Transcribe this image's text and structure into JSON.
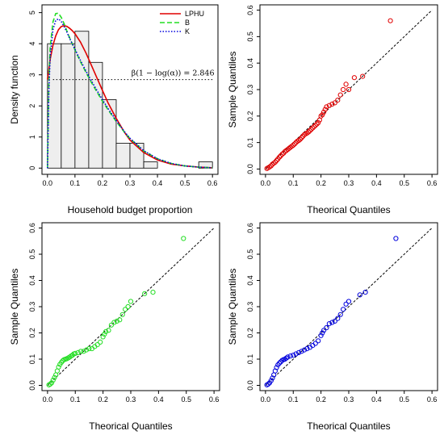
{
  "chart_data": [
    {
      "type": "bar",
      "panel": "histogram-density",
      "xlabel": "Household budget proportion",
      "ylabel": "Density function",
      "xlim": [
        -0.02,
        0.62
      ],
      "ylim": [
        -0.2,
        5.25
      ],
      "xticks": [
        "0.0",
        "0.1",
        "0.2",
        "0.3",
        "0.4",
        "0.5",
        "0.6"
      ],
      "yticks": [
        "0",
        "1",
        "2",
        "3",
        "4",
        "5"
      ],
      "bins": [
        {
          "x0": 0.0,
          "x1": 0.05,
          "value": 4.0
        },
        {
          "x0": 0.05,
          "x1": 0.1,
          "value": 4.0
        },
        {
          "x0": 0.1,
          "x1": 0.15,
          "value": 4.4
        },
        {
          "x0": 0.15,
          "x1": 0.2,
          "value": 3.4
        },
        {
          "x0": 0.2,
          "x1": 0.25,
          "value": 2.2
        },
        {
          "x0": 0.25,
          "x1": 0.3,
          "value": 0.8
        },
        {
          "x0": 0.3,
          "x1": 0.35,
          "value": 0.8
        },
        {
          "x0": 0.35,
          "x1": 0.4,
          "value": 0.2
        },
        {
          "x0": 0.4,
          "x1": 0.45,
          "value": 0.0
        },
        {
          "x0": 0.45,
          "x1": 0.5,
          "value": 0.0
        },
        {
          "x0": 0.5,
          "x1": 0.55,
          "value": 0.0
        },
        {
          "x0": 0.55,
          "x1": 0.6,
          "value": 0.2
        }
      ],
      "curves": [
        {
          "name": "LPHU",
          "color": "#e00000",
          "dash": "solid",
          "x": [
            0.0,
            0.01,
            0.02,
            0.03,
            0.04,
            0.05,
            0.06,
            0.07,
            0.08,
            0.09,
            0.1,
            0.12,
            0.14,
            0.16,
            0.18,
            0.2,
            0.22,
            0.25,
            0.28,
            0.3,
            0.35,
            0.4,
            0.45,
            0.5,
            0.55,
            0.6
          ],
          "y": [
            2.85,
            3.5,
            3.95,
            4.25,
            4.45,
            4.55,
            4.58,
            4.56,
            4.5,
            4.42,
            4.32,
            4.05,
            3.7,
            3.3,
            2.9,
            2.5,
            2.1,
            1.6,
            1.15,
            0.9,
            0.5,
            0.26,
            0.13,
            0.07,
            0.03,
            0.01
          ]
        },
        {
          "name": "B",
          "color": "#22dd22",
          "dash": "dashed",
          "x": [
            0.0,
            0.005,
            0.01,
            0.02,
            0.03,
            0.04,
            0.05,
            0.06,
            0.07,
            0.08,
            0.1,
            0.12,
            0.14,
            0.16,
            0.18,
            0.2,
            0.22,
            0.25,
            0.28,
            0.3,
            0.35,
            0.4,
            0.45,
            0.5,
            0.55,
            0.6
          ],
          "y": [
            0.0,
            2.8,
            3.9,
            4.7,
            4.97,
            4.98,
            4.85,
            4.65,
            4.42,
            4.2,
            3.8,
            3.42,
            3.08,
            2.75,
            2.45,
            2.15,
            1.88,
            1.5,
            1.15,
            0.95,
            0.55,
            0.3,
            0.15,
            0.07,
            0.03,
            0.01
          ]
        },
        {
          "name": "K",
          "color": "#0000dd",
          "dash": "dotted",
          "x": [
            0.0,
            0.005,
            0.01,
            0.02,
            0.03,
            0.04,
            0.05,
            0.06,
            0.07,
            0.08,
            0.1,
            0.12,
            0.14,
            0.16,
            0.18,
            0.2,
            0.22,
            0.25,
            0.28,
            0.3,
            0.35,
            0.4,
            0.45,
            0.5,
            0.55,
            0.6
          ],
          "y": [
            0.0,
            2.5,
            3.6,
            4.45,
            4.75,
            4.8,
            4.72,
            4.56,
            4.38,
            4.18,
            3.82,
            3.46,
            3.12,
            2.8,
            2.5,
            2.2,
            1.92,
            1.53,
            1.17,
            0.96,
            0.56,
            0.3,
            0.15,
            0.07,
            0.03,
            0.01
          ]
        }
      ],
      "reference_line": {
        "y": 2.846,
        "x_from": 0.02,
        "x_to": 0.6,
        "label": "β(1 − log(α)) = 2.846"
      },
      "legend": "top-right"
    },
    {
      "type": "scatter",
      "panel": "qq-red",
      "xlabel": "Theorical Quantiles",
      "ylabel": "Sample Quantiles",
      "xlim": [
        -0.02,
        0.62
      ],
      "ylim": [
        -0.02,
        0.62
      ],
      "xticks": [
        "0.0",
        "0.1",
        "0.2",
        "0.3",
        "0.4",
        "0.5",
        "0.6"
      ],
      "yticks": [
        "0.0",
        "0.1",
        "0.2",
        "0.3",
        "0.4",
        "0.5",
        "0.6"
      ],
      "color": "#e00000",
      "points": [
        [
          0.005,
          0.002
        ],
        [
          0.01,
          0.005
        ],
        [
          0.015,
          0.008
        ],
        [
          0.02,
          0.012
        ],
        [
          0.025,
          0.018
        ],
        [
          0.03,
          0.022
        ],
        [
          0.035,
          0.026
        ],
        [
          0.04,
          0.032
        ],
        [
          0.045,
          0.038
        ],
        [
          0.05,
          0.045
        ],
        [
          0.055,
          0.05
        ],
        [
          0.06,
          0.056
        ],
        [
          0.065,
          0.06
        ],
        [
          0.07,
          0.066
        ],
        [
          0.075,
          0.07
        ],
        [
          0.08,
          0.074
        ],
        [
          0.085,
          0.078
        ],
        [
          0.09,
          0.082
        ],
        [
          0.095,
          0.086
        ],
        [
          0.1,
          0.09
        ],
        [
          0.105,
          0.095
        ],
        [
          0.11,
          0.1
        ],
        [
          0.115,
          0.105
        ],
        [
          0.12,
          0.108
        ],
        [
          0.125,
          0.112
        ],
        [
          0.13,
          0.118
        ],
        [
          0.135,
          0.124
        ],
        [
          0.14,
          0.13
        ],
        [
          0.145,
          0.133
        ],
        [
          0.15,
          0.136
        ],
        [
          0.155,
          0.14
        ],
        [
          0.16,
          0.145
        ],
        [
          0.165,
          0.15
        ],
        [
          0.17,
          0.155
        ],
        [
          0.175,
          0.16
        ],
        [
          0.18,
          0.165
        ],
        [
          0.185,
          0.17
        ],
        [
          0.19,
          0.175
        ],
        [
          0.195,
          0.185
        ],
        [
          0.2,
          0.2
        ],
        [
          0.205,
          0.205
        ],
        [
          0.21,
          0.215
        ],
        [
          0.215,
          0.225
        ],
        [
          0.22,
          0.235
        ],
        [
          0.23,
          0.24
        ],
        [
          0.24,
          0.245
        ],
        [
          0.25,
          0.25
        ],
        [
          0.26,
          0.26
        ],
        [
          0.27,
          0.28
        ],
        [
          0.28,
          0.3
        ],
        [
          0.29,
          0.32
        ],
        [
          0.3,
          0.3
        ],
        [
          0.32,
          0.345
        ],
        [
          0.35,
          0.35
        ],
        [
          0.45,
          0.56
        ]
      ]
    },
    {
      "type": "scatter",
      "panel": "qq-green",
      "xlabel": "Theorical Quantiles",
      "ylabel": "Sample Quantiles",
      "xlim": [
        -0.02,
        0.62
      ],
      "ylim": [
        -0.02,
        0.62
      ],
      "xticks": [
        "0.0",
        "0.1",
        "0.2",
        "0.3",
        "0.4",
        "0.5",
        "0.6"
      ],
      "yticks": [
        "0.0",
        "0.1",
        "0.2",
        "0.3",
        "0.4",
        "0.5",
        "0.6"
      ],
      "color": "#22dd22",
      "points": [
        [
          0.005,
          0.002
        ],
        [
          0.01,
          0.005
        ],
        [
          0.015,
          0.01
        ],
        [
          0.02,
          0.02
        ],
        [
          0.025,
          0.03
        ],
        [
          0.03,
          0.04
        ],
        [
          0.035,
          0.055
        ],
        [
          0.04,
          0.07
        ],
        [
          0.045,
          0.08
        ],
        [
          0.05,
          0.088
        ],
        [
          0.055,
          0.094
        ],
        [
          0.06,
          0.098
        ],
        [
          0.065,
          0.1
        ],
        [
          0.07,
          0.102
        ],
        [
          0.075,
          0.105
        ],
        [
          0.08,
          0.108
        ],
        [
          0.085,
          0.112
        ],
        [
          0.09,
          0.115
        ],
        [
          0.095,
          0.12
        ],
        [
          0.1,
          0.122
        ],
        [
          0.11,
          0.125
        ],
        [
          0.12,
          0.13
        ],
        [
          0.13,
          0.13
        ],
        [
          0.14,
          0.135
        ],
        [
          0.15,
          0.14
        ],
        [
          0.16,
          0.14
        ],
        [
          0.17,
          0.148
        ],
        [
          0.18,
          0.155
        ],
        [
          0.19,
          0.165
        ],
        [
          0.2,
          0.185
        ],
        [
          0.205,
          0.195
        ],
        [
          0.21,
          0.205
        ],
        [
          0.22,
          0.21
        ],
        [
          0.23,
          0.23
        ],
        [
          0.24,
          0.24
        ],
        [
          0.25,
          0.245
        ],
        [
          0.26,
          0.25
        ],
        [
          0.27,
          0.27
        ],
        [
          0.28,
          0.29
        ],
        [
          0.29,
          0.3
        ],
        [
          0.3,
          0.32
        ],
        [
          0.35,
          0.35
        ],
        [
          0.38,
          0.355
        ],
        [
          0.49,
          0.56
        ]
      ]
    },
    {
      "type": "scatter",
      "panel": "qq-blue",
      "xlabel": "Theorical Quantiles",
      "ylabel": "Sample Quantiles",
      "xlim": [
        -0.02,
        0.62
      ],
      "ylim": [
        -0.02,
        0.62
      ],
      "xticks": [
        "0.0",
        "0.1",
        "0.2",
        "0.3",
        "0.4",
        "0.5",
        "0.6"
      ],
      "yticks": [
        "0.0",
        "0.1",
        "0.2",
        "0.3",
        "0.4",
        "0.5",
        "0.6"
      ],
      "color": "#0000dd",
      "points": [
        [
          0.005,
          0.002
        ],
        [
          0.01,
          0.005
        ],
        [
          0.015,
          0.01
        ],
        [
          0.02,
          0.018
        ],
        [
          0.025,
          0.028
        ],
        [
          0.03,
          0.04
        ],
        [
          0.035,
          0.055
        ],
        [
          0.04,
          0.068
        ],
        [
          0.045,
          0.078
        ],
        [
          0.05,
          0.085
        ],
        [
          0.055,
          0.09
        ],
        [
          0.06,
          0.095
        ],
        [
          0.065,
          0.098
        ],
        [
          0.07,
          0.1
        ],
        [
          0.075,
          0.104
        ],
        [
          0.08,
          0.108
        ],
        [
          0.09,
          0.112
        ],
        [
          0.1,
          0.115
        ],
        [
          0.11,
          0.12
        ],
        [
          0.12,
          0.125
        ],
        [
          0.13,
          0.13
        ],
        [
          0.14,
          0.135
        ],
        [
          0.15,
          0.14
        ],
        [
          0.16,
          0.145
        ],
        [
          0.17,
          0.152
        ],
        [
          0.18,
          0.16
        ],
        [
          0.19,
          0.17
        ],
        [
          0.2,
          0.19
        ],
        [
          0.205,
          0.2
        ],
        [
          0.21,
          0.21
        ],
        [
          0.22,
          0.22
        ],
        [
          0.23,
          0.235
        ],
        [
          0.24,
          0.24
        ],
        [
          0.25,
          0.245
        ],
        [
          0.26,
          0.255
        ],
        [
          0.27,
          0.27
        ],
        [
          0.28,
          0.29
        ],
        [
          0.29,
          0.31
        ],
        [
          0.3,
          0.32
        ],
        [
          0.34,
          0.345
        ],
        [
          0.36,
          0.355
        ],
        [
          0.47,
          0.56
        ]
      ]
    }
  ]
}
